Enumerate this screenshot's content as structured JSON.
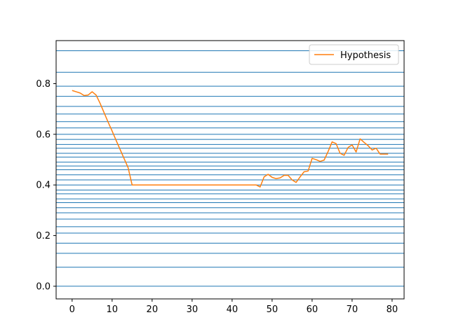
{
  "chart_data": {
    "type": "line",
    "title": "",
    "xlabel": "",
    "ylabel": "",
    "xlim": [
      -4,
      83
    ],
    "ylim": [
      -0.05,
      0.97
    ],
    "xticks": [
      0,
      10,
      20,
      30,
      40,
      50,
      60,
      70,
      80
    ],
    "xtick_labels": [
      "0",
      "10",
      "20",
      "30",
      "40",
      "50",
      "60",
      "70",
      "80"
    ],
    "yticks": [
      0.0,
      0.2,
      0.4,
      0.6,
      0.8
    ],
    "ytick_labels": [
      "0.0",
      "0.2",
      "0.4",
      "0.6",
      "0.8"
    ],
    "legend_position": "upper right",
    "grid": false,
    "hlines": {
      "color": "#1f77b4",
      "values": [
        0.0,
        0.075,
        0.13,
        0.17,
        0.21,
        0.235,
        0.265,
        0.29,
        0.31,
        0.33,
        0.345,
        0.365,
        0.38,
        0.4,
        0.42,
        0.44,
        0.46,
        0.475,
        0.49,
        0.51,
        0.525,
        0.545,
        0.56,
        0.58,
        0.6,
        0.625,
        0.65,
        0.68,
        0.71,
        0.75,
        0.79,
        0.845,
        0.93
      ]
    },
    "series": [
      {
        "name": "Hypothesis",
        "color": "#ff7f0e",
        "x": [
          0,
          1,
          2,
          3,
          4,
          5,
          6,
          7,
          8,
          9,
          10,
          11,
          12,
          13,
          14,
          15,
          16,
          17,
          18,
          19,
          20,
          21,
          22,
          23,
          24,
          25,
          26,
          27,
          28,
          29,
          30,
          31,
          32,
          33,
          34,
          35,
          36,
          37,
          38,
          39,
          40,
          41,
          42,
          43,
          44,
          45,
          46,
          47,
          48,
          49,
          50,
          51,
          52,
          53,
          54,
          55,
          56,
          57,
          58,
          59,
          60,
          61,
          62,
          63,
          64,
          65,
          66,
          67,
          68,
          69,
          70,
          71,
          72,
          73,
          74,
          75,
          76,
          77,
          78,
          79
        ],
        "values": [
          0.773,
          0.768,
          0.763,
          0.753,
          0.755,
          0.768,
          0.755,
          0.722,
          0.685,
          0.648,
          0.613,
          0.576,
          0.54,
          0.504,
          0.468,
          0.4,
          0.4,
          0.4,
          0.4,
          0.4,
          0.4,
          0.4,
          0.4,
          0.4,
          0.4,
          0.4,
          0.4,
          0.4,
          0.4,
          0.4,
          0.4,
          0.4,
          0.4,
          0.4,
          0.4,
          0.4,
          0.4,
          0.4,
          0.4,
          0.4,
          0.4,
          0.4,
          0.4,
          0.4,
          0.4,
          0.4,
          0.4,
          0.392,
          0.432,
          0.442,
          0.43,
          0.425,
          0.428,
          0.438,
          0.438,
          0.42,
          0.41,
          0.432,
          0.452,
          0.455,
          0.505,
          0.5,
          0.493,
          0.498,
          0.532,
          0.57,
          0.563,
          0.525,
          0.517,
          0.548,
          0.558,
          0.53,
          0.582,
          0.568,
          0.555,
          0.538,
          0.545,
          0.522,
          0.522,
          0.522
        ]
      }
    ]
  }
}
